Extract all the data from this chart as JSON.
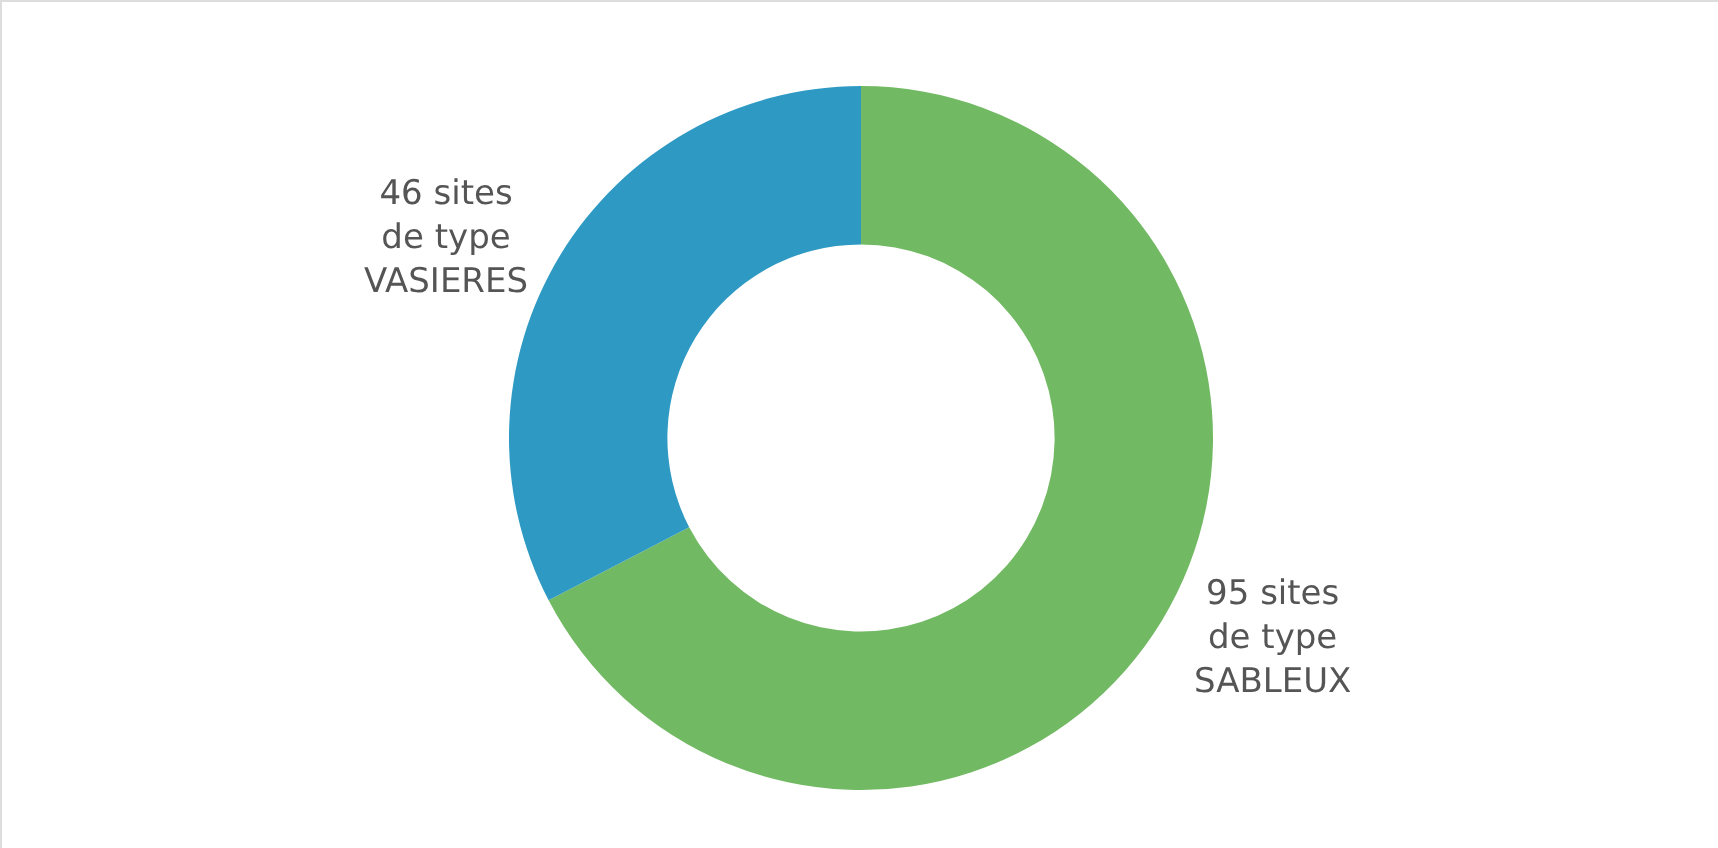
{
  "chart_data": {
    "type": "donut",
    "categories": [
      "SABLEUX",
      "VASIERES"
    ],
    "values": [
      95,
      46
    ],
    "colors": [
      "#72b963",
      "#2e9ac4"
    ],
    "value_labels": [
      "95 sites\nde type",
      "46 sites\nde type"
    ],
    "legend": false
  }
}
